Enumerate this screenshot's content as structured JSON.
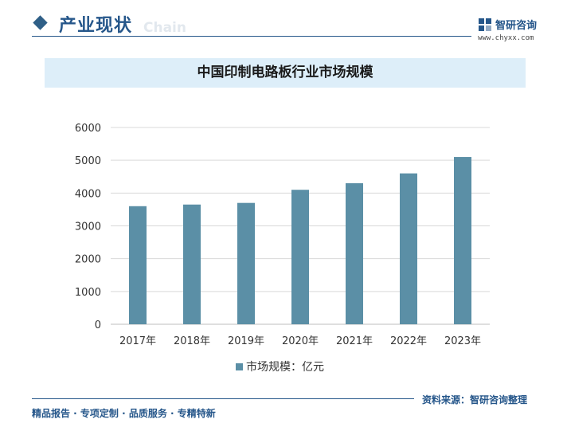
{
  "header": {
    "section_title": "产业现状",
    "section_subtitle": "Chain",
    "brand_name": "智研咨询",
    "brand_url": "www.chyxx.com"
  },
  "chart_data": {
    "type": "bar",
    "title": "中国印制电路板行业市场规模",
    "categories": [
      "2017年",
      "2018年",
      "2019年",
      "2020年",
      "2021年",
      "2022年",
      "2023年"
    ],
    "series": [
      {
        "name": "市场规模：亿元",
        "values": [
          3600,
          3650,
          3700,
          4100,
          4300,
          4600,
          5100
        ],
        "color": "#5b8fa6"
      }
    ],
    "ylim": [
      0,
      6000
    ],
    "yticks": [
      "0",
      "1000",
      "2000",
      "3000",
      "4000",
      "5000",
      "6000"
    ],
    "grid": true,
    "legend_position": "bottom"
  },
  "footer": {
    "source": "资料来源：智研咨询整理",
    "services": "精品报告 · 专项定制 · 品质服务 · 专精特新"
  }
}
